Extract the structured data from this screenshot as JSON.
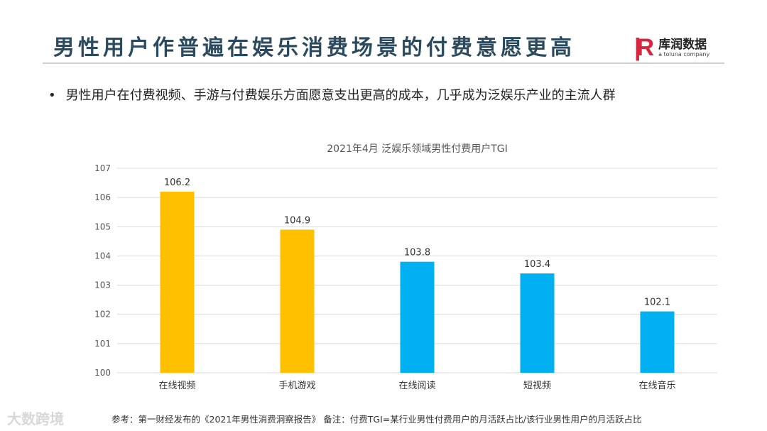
{
  "header": {
    "title": "男性用户作普遍在娱乐消费场景的付费意愿更高",
    "logo_text": "库润数据",
    "logo_subtext": "a toluna company",
    "logo_mark": "R"
  },
  "bullet": "男性用户在付费视频、手游与付费娱乐方面愿意支出更高的成本，几乎成为泛娱乐产业的主流人群",
  "footer": "参考：第一财经发布的《2021年男性消费洞察报告》 备注：付费TGI=某行业男性付费用户的月活跃占比/该行业男性用户的月活跃占比",
  "watermark": "大数跨境",
  "chart_data": {
    "type": "bar",
    "title": "2021年4月  泛娱乐领域男性付费用户TGI",
    "categories": [
      "在线视频",
      "手机游戏",
      "在线阅读",
      "短视频",
      "在线音乐"
    ],
    "values": [
      106.2,
      104.9,
      103.8,
      103.4,
      102.1
    ],
    "value_labels": [
      "106.2",
      "104.9",
      "103.8",
      "103.4",
      "102.1"
    ],
    "colors": [
      "#FFC000",
      "#FFC000",
      "#00B0F0",
      "#00B0F0",
      "#00B0F0"
    ],
    "ylim": [
      100,
      107
    ],
    "yticks": [
      "100",
      "101",
      "102",
      "103",
      "104",
      "105",
      "106",
      "107"
    ],
    "grid": true,
    "xlabel": "",
    "ylabel": ""
  }
}
